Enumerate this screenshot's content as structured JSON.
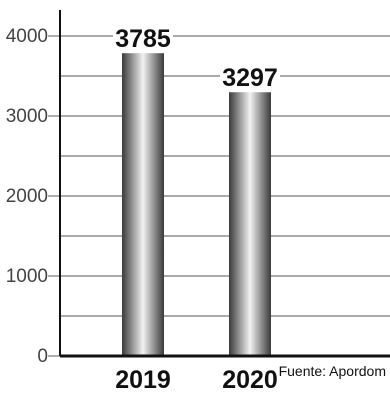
{
  "chart_data": {
    "type": "bar",
    "categories": [
      "2019",
      "2020"
    ],
    "values": [
      3785,
      3297
    ],
    "title": "",
    "xlabel": "",
    "ylabel": "",
    "ylim": [
      0,
      4200
    ],
    "yticks": [
      0,
      1000,
      2000,
      3000,
      4000
    ],
    "grid": true,
    "colors": {
      "bar_dark": "#3a3a3a",
      "bar_light": "#f2f2f2",
      "grid": "#777777",
      "axis": "#111111"
    }
  },
  "source_note": "Fuente: Apordom"
}
